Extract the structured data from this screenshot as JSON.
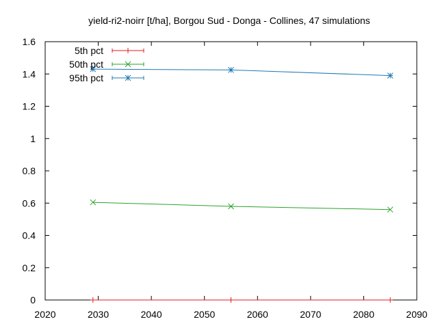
{
  "chart_data": {
    "type": "line",
    "title": "yield-ri2-noirr [t/ha], Borgou Sud - Donga - Collines, 47 simulations",
    "xlabel": "",
    "ylabel": "",
    "xlim": [
      2020,
      2090
    ],
    "ylim": [
      0,
      1.6
    ],
    "x_ticks": [
      2020,
      2030,
      2040,
      2050,
      2060,
      2070,
      2080,
      2090
    ],
    "y_ticks": [
      0,
      0.2,
      0.4,
      0.6,
      0.8,
      1,
      1.2,
      1.4,
      1.6
    ],
    "x_tick_labels": [
      "2020",
      "2030",
      "2040",
      "2050",
      "2060",
      "2070",
      "2080",
      "2090"
    ],
    "y_tick_labels": [
      "0",
      "0.2",
      "0.4",
      "0.6",
      "0.8",
      "1",
      "1.2",
      "1.4",
      "1.6"
    ],
    "grid": false,
    "legend_position": "top-left",
    "series": [
      {
        "name": "5th pct",
        "color": "#e41a1c",
        "marker": "plus",
        "x": [
          2029,
          2055,
          2085
        ],
        "y": [
          0,
          0,
          0
        ]
      },
      {
        "name": "50th pct",
        "color": "#2ca02c",
        "marker": "cross",
        "x": [
          2029,
          2055,
          2085
        ],
        "y": [
          0.605,
          0.58,
          0.56
        ]
      },
      {
        "name": "95th pct",
        "color": "#1f77b4",
        "marker": "star",
        "x": [
          2029,
          2055,
          2085
        ],
        "y": [
          1.43,
          1.425,
          1.39
        ]
      }
    ]
  }
}
